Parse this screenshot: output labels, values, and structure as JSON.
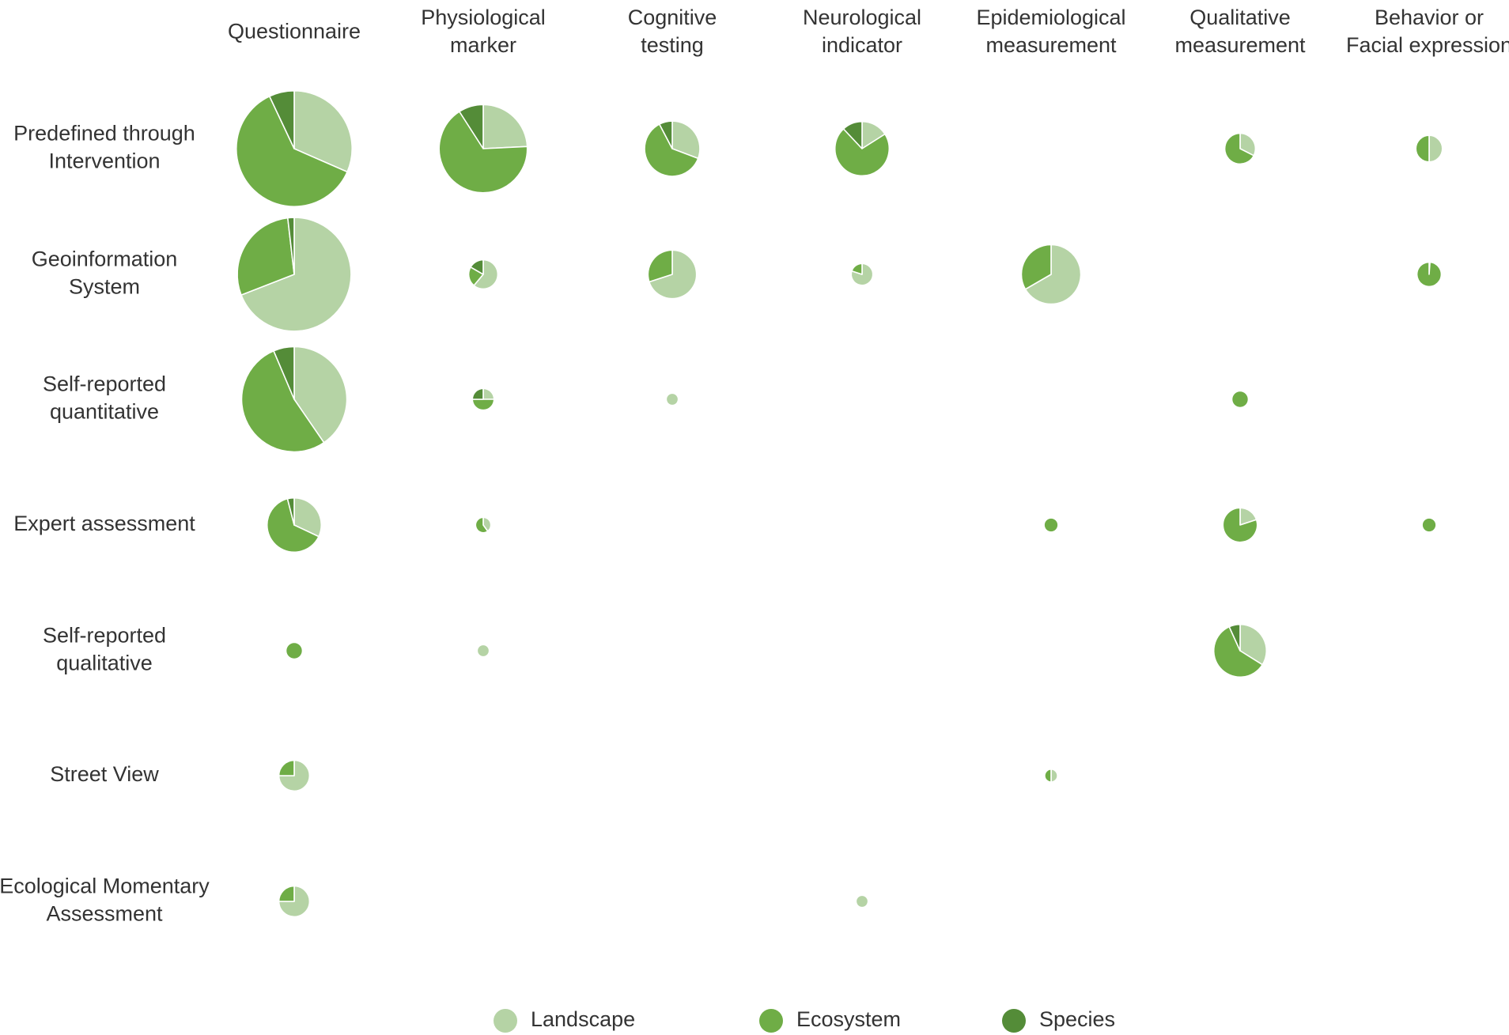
{
  "chart_data": {
    "type": "pie-matrix",
    "title": "",
    "columns": [
      {
        "label": [
          "Questionnaire"
        ]
      },
      {
        "label": [
          "Physiological",
          "marker"
        ]
      },
      {
        "label": [
          "Cognitive",
          "testing"
        ]
      },
      {
        "label": [
          "Neurological",
          "indicator"
        ]
      },
      {
        "label": [
          "Epidemiological",
          "measurement"
        ]
      },
      {
        "label": [
          "Qualitative",
          "measurement"
        ]
      },
      {
        "label": [
          "Behavior or",
          "Facial expression"
        ]
      }
    ],
    "rows": [
      {
        "label": [
          "Predefined through",
          "Intervention"
        ]
      },
      {
        "label": [
          "Geoinformation",
          "System"
        ]
      },
      {
        "label": [
          "Self-reported",
          "quantitative"
        ]
      },
      {
        "label": [
          "Expert assessment"
        ]
      },
      {
        "label": [
          "Self-reported",
          "qualitative"
        ]
      },
      {
        "label": [
          "Street View"
        ]
      },
      {
        "label": [
          "Ecological Momentary",
          "Assessment"
        ]
      }
    ],
    "series": [
      {
        "name": "Landscape",
        "color": "#b5d3a5"
      },
      {
        "name": "Ecosystem",
        "color": "#6fad46"
      },
      {
        "name": "Species",
        "color": "#548c38"
      }
    ],
    "size_note": "pie area proportional to total number of studies",
    "cells": [
      {
        "row": 0,
        "col": 0,
        "values": [
          18,
          35,
          4
        ]
      },
      {
        "row": 0,
        "col": 1,
        "values": [
          8,
          22,
          3
        ]
      },
      {
        "row": 0,
        "col": 2,
        "values": [
          4,
          8,
          1
        ]
      },
      {
        "row": 0,
        "col": 3,
        "values": [
          2,
          9,
          1.5
        ]
      },
      {
        "row": 0,
        "col": 5,
        "values": [
          1.3,
          2.7,
          0
        ]
      },
      {
        "row": 0,
        "col": 6,
        "values": [
          1.5,
          1.5,
          0
        ]
      },
      {
        "row": 1,
        "col": 0,
        "values": [
          38,
          16,
          1
        ]
      },
      {
        "row": 1,
        "col": 1,
        "values": [
          2.2,
          0.8,
          0.6
        ]
      },
      {
        "row": 1,
        "col": 2,
        "values": [
          7,
          3,
          0
        ]
      },
      {
        "row": 1,
        "col": 3,
        "values": [
          1.6,
          0.4,
          0
        ]
      },
      {
        "row": 1,
        "col": 4,
        "values": [
          10,
          5,
          0
        ]
      },
      {
        "row": 1,
        "col": 6,
        "values": [
          0.03,
          2.5,
          0
        ]
      },
      {
        "row": 2,
        "col": 0,
        "values": [
          19,
          25,
          3
        ]
      },
      {
        "row": 2,
        "col": 1,
        "values": [
          0.5,
          1,
          0.5
        ]
      },
      {
        "row": 2,
        "col": 2,
        "values": [
          0.5,
          0,
          0
        ]
      },
      {
        "row": 2,
        "col": 5,
        "values": [
          0,
          1,
          0
        ]
      },
      {
        "row": 3,
        "col": 0,
        "values": [
          4,
          8,
          0.5
        ]
      },
      {
        "row": 3,
        "col": 1,
        "values": [
          0.4,
          0.6,
          0
        ]
      },
      {
        "row": 3,
        "col": 4,
        "values": [
          0,
          0.7,
          0
        ]
      },
      {
        "row": 3,
        "col": 5,
        "values": [
          1,
          4,
          0
        ]
      },
      {
        "row": 3,
        "col": 6,
        "values": [
          0,
          0.7,
          0
        ]
      },
      {
        "row": 4,
        "col": 0,
        "values": [
          0,
          1,
          0
        ]
      },
      {
        "row": 4,
        "col": 1,
        "values": [
          0.5,
          0,
          0
        ]
      },
      {
        "row": 4,
        "col": 5,
        "values": [
          4,
          7,
          0.8
        ]
      },
      {
        "row": 5,
        "col": 0,
        "values": [
          3,
          1,
          0
        ]
      },
      {
        "row": 5,
        "col": 4,
        "values": [
          0.35,
          0.35,
          0
        ]
      },
      {
        "row": 6,
        "col": 0,
        "values": [
          3,
          1,
          0
        ]
      },
      {
        "row": 6,
        "col": 3,
        "values": [
          0.5,
          0,
          0
        ]
      }
    ]
  }
}
